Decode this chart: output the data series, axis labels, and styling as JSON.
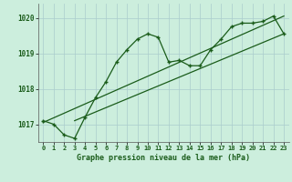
{
  "title": "Graphe pression niveau de la mer (hPa)",
  "bg_color": "#cceedd",
  "grid_color": "#aacccc",
  "line_color": "#1a5c1a",
  "ylim": [
    1016.5,
    1020.4
  ],
  "xlim": [
    -0.5,
    23.5
  ],
  "yticks": [
    1017,
    1018,
    1019,
    1020
  ],
  "xticks": [
    0,
    1,
    2,
    3,
    4,
    5,
    6,
    7,
    8,
    9,
    10,
    11,
    12,
    13,
    14,
    15,
    16,
    17,
    18,
    19,
    20,
    21,
    22,
    23
  ],
  "series1_x": [
    0,
    1,
    2,
    3,
    4,
    5,
    6,
    7,
    8,
    9,
    10,
    11,
    12,
    13,
    14,
    15,
    16,
    17,
    18,
    19,
    20,
    21,
    22,
    23
  ],
  "series1_y": [
    1017.1,
    1017.0,
    1016.7,
    1016.6,
    1017.2,
    1017.75,
    1018.2,
    1018.75,
    1019.1,
    1019.4,
    1019.55,
    1019.45,
    1018.75,
    1018.8,
    1018.65,
    1018.65,
    1019.1,
    1019.4,
    1019.75,
    1019.85,
    1019.85,
    1019.9,
    1020.05,
    1019.55
  ],
  "series2_x": [
    0,
    23
  ],
  "series2_y": [
    1017.05,
    1020.05
  ],
  "series3_x": [
    3,
    23
  ],
  "series3_y": [
    1017.1,
    1019.55
  ],
  "marker": "+"
}
